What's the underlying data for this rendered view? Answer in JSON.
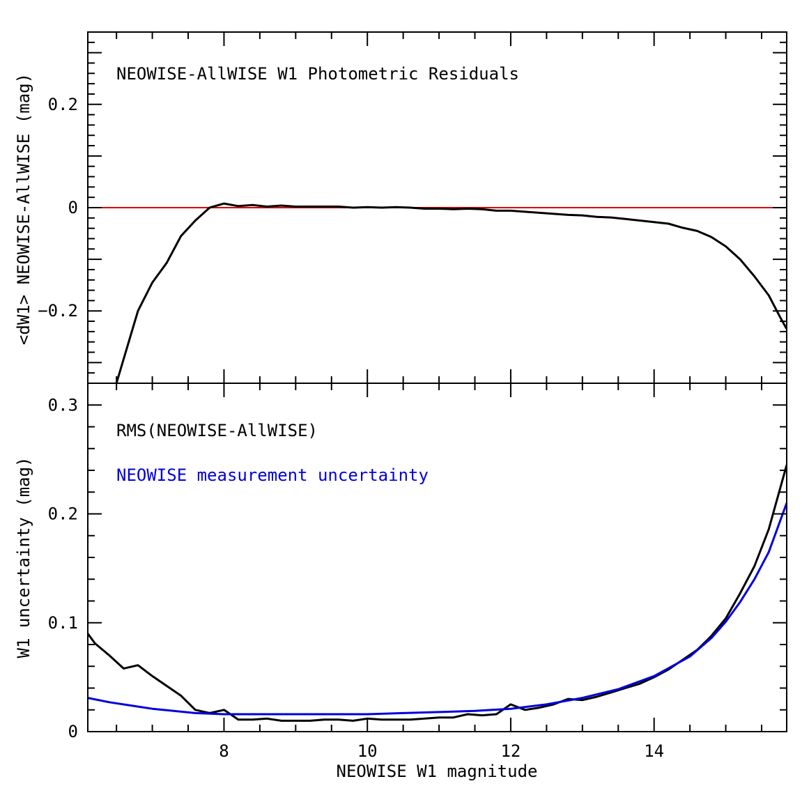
{
  "chart_data": [
    {
      "type": "line",
      "title": "NEOWISE-AllWISE W1 Photometric Residuals",
      "ylabel": "<dW1> NEOWISE-AllWISE (mag)",
      "xlim": [
        6.1,
        15.85
      ],
      "ylim": [
        -0.34,
        0.34
      ],
      "yticks": [
        -0.2,
        0,
        0.2
      ],
      "ytick_labels": [
        "−0.2",
        "0",
        "0.2"
      ],
      "reference_line": {
        "y": 0,
        "color": "#dd0000"
      },
      "series": [
        {
          "color": "#000000",
          "x": [
            6.5,
            6.8,
            7.0,
            7.2,
            7.4,
            7.6,
            7.8,
            8.0,
            8.2,
            8.4,
            8.6,
            8.8,
            9.0,
            9.2,
            9.4,
            9.6,
            9.8,
            10.0,
            10.2,
            10.4,
            10.6,
            10.8,
            11.0,
            11.2,
            11.4,
            11.6,
            11.8,
            12.0,
            12.2,
            12.4,
            12.6,
            12.8,
            13.0,
            13.2,
            13.4,
            13.6,
            13.8,
            14.0,
            14.2,
            14.4,
            14.6,
            14.8,
            15.0,
            15.2,
            15.4,
            15.6,
            15.75,
            15.85
          ],
          "values": [
            -0.34,
            -0.2,
            -0.145,
            -0.107,
            -0.055,
            -0.025,
            0.0,
            0.008,
            0.003,
            0.005,
            0.002,
            0.004,
            0.002,
            0.002,
            0.002,
            0.002,
            0.0,
            0.001,
            0.0,
            0.001,
            0.0,
            -0.002,
            -0.002,
            -0.003,
            -0.002,
            -0.003,
            -0.006,
            -0.006,
            -0.008,
            -0.01,
            -0.012,
            -0.014,
            -0.015,
            -0.018,
            -0.019,
            -0.022,
            -0.025,
            -0.028,
            -0.031,
            -0.039,
            -0.045,
            -0.057,
            -0.075,
            -0.1,
            -0.133,
            -0.17,
            -0.21,
            -0.235
          ]
        }
      ]
    },
    {
      "type": "line",
      "xlabel": "NEOWISE W1 magnitude",
      "ylabel": "W1 uncertainty (mag)",
      "xlim": [
        6.1,
        15.85
      ],
      "ylim": [
        0,
        0.32
      ],
      "xticks": [
        8,
        10,
        12,
        14
      ],
      "xtick_labels": [
        "8",
        "10",
        "12",
        "14"
      ],
      "yticks": [
        0,
        0.1,
        0.2,
        0.3
      ],
      "ytick_labels": [
        "0",
        "0.1",
        "0.2",
        "0.3"
      ],
      "annotations": [
        {
          "text": "RMS(NEOWISE-AllWISE)",
          "color": "#000000"
        },
        {
          "text": "NEOWISE measurement uncertainty",
          "color": "#0000dd"
        }
      ],
      "series": [
        {
          "color": "#000000",
          "x": [
            6.1,
            6.2,
            6.4,
            6.6,
            6.8,
            7.0,
            7.2,
            7.4,
            7.6,
            7.8,
            8.0,
            8.2,
            8.4,
            8.6,
            8.8,
            9.0,
            9.2,
            9.4,
            9.6,
            9.8,
            10.0,
            10.2,
            10.4,
            10.6,
            10.8,
            11.0,
            11.2,
            11.4,
            11.6,
            11.8,
            12.0,
            12.2,
            12.4,
            12.6,
            12.8,
            13.0,
            13.2,
            13.4,
            13.6,
            13.8,
            14.0,
            14.2,
            14.4,
            14.6,
            14.8,
            15.0,
            15.2,
            15.4,
            15.6,
            15.85
          ],
          "values": [
            0.09,
            0.081,
            0.07,
            0.058,
            0.061,
            0.051,
            0.042,
            0.033,
            0.02,
            0.017,
            0.02,
            0.011,
            0.011,
            0.012,
            0.01,
            0.01,
            0.01,
            0.011,
            0.011,
            0.01,
            0.012,
            0.011,
            0.011,
            0.011,
            0.012,
            0.013,
            0.013,
            0.016,
            0.015,
            0.016,
            0.025,
            0.02,
            0.022,
            0.025,
            0.03,
            0.029,
            0.032,
            0.036,
            0.04,
            0.044,
            0.05,
            0.057,
            0.066,
            0.075,
            0.088,
            0.104,
            0.127,
            0.152,
            0.186,
            0.245
          ]
        },
        {
          "color": "#0000dd",
          "x": [
            6.1,
            6.4,
            6.7,
            7.0,
            7.3,
            7.6,
            8.0,
            8.5,
            9.0,
            9.5,
            10.0,
            10.5,
            11.0,
            11.5,
            12.0,
            12.5,
            13.0,
            13.5,
            14.0,
            14.5,
            14.8,
            15.0,
            15.2,
            15.4,
            15.6,
            15.85
          ],
          "values": [
            0.031,
            0.027,
            0.024,
            0.021,
            0.019,
            0.017,
            0.016,
            0.016,
            0.016,
            0.016,
            0.016,
            0.017,
            0.018,
            0.019,
            0.021,
            0.025,
            0.031,
            0.039,
            0.051,
            0.069,
            0.086,
            0.101,
            0.119,
            0.14,
            0.165,
            0.21
          ]
        }
      ]
    }
  ]
}
